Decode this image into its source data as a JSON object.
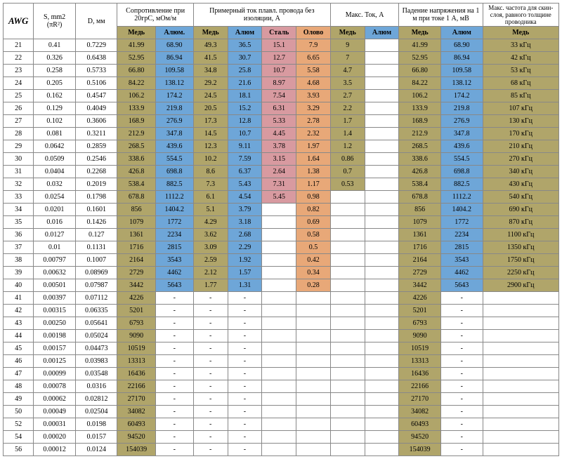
{
  "colors": {
    "copper": "#b0a56a",
    "alum": "#6ea6d8",
    "steel": "#d89aa0",
    "tin": "#e8a878"
  },
  "headers": {
    "awg": "AWG",
    "s": "S, mm2 (πR²)",
    "d": "D, мм",
    "resist": "Сопротивление при 20грC, мОм/м",
    "current": "Примерный ток плавл. провода без изоляции, А",
    "maxI": "Макс. Ток, А",
    "vdrop": "Падение напряжения на 1 м при токе 1 А, мВ",
    "freq": "Макс. частота для скин-слоя, равного толщине проводника"
  },
  "sub": {
    "cu": "Медь",
    "al": "Алюм.",
    "steel": "Сталь",
    "tin": "Олово",
    "al2": "Алюм"
  },
  "rows": [
    {
      "awg": "21",
      "s": "0.41",
      "d": "0.7229",
      "r_cu": "41.99",
      "r_al": "68.90",
      "i_cu": "49.3",
      "i_al": "36.5",
      "i_st": "15.1",
      "i_sn": "7.9",
      "m_cu": "9",
      "m_al": "",
      "v_cu": "41.99",
      "v_al": "68.90",
      "f": "33 кГц"
    },
    {
      "awg": "22",
      "s": "0.326",
      "d": "0.6438",
      "r_cu": "52.95",
      "r_al": "86.94",
      "i_cu": "41.5",
      "i_al": "30.7",
      "i_st": "12.7",
      "i_sn": "6.65",
      "m_cu": "7",
      "m_al": "",
      "v_cu": "52.95",
      "v_al": "86.94",
      "f": "42 кГц"
    },
    {
      "awg": "23",
      "s": "0.258",
      "d": "0.5733",
      "r_cu": "66.80",
      "r_al": "109.58",
      "i_cu": "34.8",
      "i_al": "25.8",
      "i_st": "10.7",
      "i_sn": "5.58",
      "m_cu": "4.7",
      "m_al": "",
      "v_cu": "66.80",
      "v_al": "109.58",
      "f": "53 кГц"
    },
    {
      "awg": "24",
      "s": "0.205",
      "d": "0.5106",
      "r_cu": "84.22",
      "r_al": "138.12",
      "i_cu": "29.2",
      "i_al": "21.6",
      "i_st": "8.97",
      "i_sn": "4.68",
      "m_cu": "3.5",
      "m_al": "",
      "v_cu": "84.22",
      "v_al": "138.12",
      "f": "68 кГц"
    },
    {
      "awg": "25",
      "s": "0.162",
      "d": "0.4547",
      "r_cu": "106.2",
      "r_al": "174.2",
      "i_cu": "24.5",
      "i_al": "18.1",
      "i_st": "7.54",
      "i_sn": "3.93",
      "m_cu": "2.7",
      "m_al": "",
      "v_cu": "106.2",
      "v_al": "174.2",
      "f": "85 кГц"
    },
    {
      "awg": "26",
      "s": "0.129",
      "d": "0.4049",
      "r_cu": "133.9",
      "r_al": "219.8",
      "i_cu": "20.5",
      "i_al": "15.2",
      "i_st": "6.31",
      "i_sn": "3.29",
      "m_cu": "2.2",
      "m_al": "",
      "v_cu": "133.9",
      "v_al": "219.8",
      "f": "107 кГц"
    },
    {
      "awg": "27",
      "s": "0.102",
      "d": "0.3606",
      "r_cu": "168.9",
      "r_al": "276.9",
      "i_cu": "17.3",
      "i_al": "12.8",
      "i_st": "5.33",
      "i_sn": "2.78",
      "m_cu": "1.7",
      "m_al": "",
      "v_cu": "168.9",
      "v_al": "276.9",
      "f": "130 кГц"
    },
    {
      "awg": "28",
      "s": "0.081",
      "d": "0.3211",
      "r_cu": "212.9",
      "r_al": "347.8",
      "i_cu": "14.5",
      "i_al": "10.7",
      "i_st": "4.45",
      "i_sn": "2.32",
      "m_cu": "1.4",
      "m_al": "",
      "v_cu": "212.9",
      "v_al": "347.8",
      "f": "170 кГц"
    },
    {
      "awg": "29",
      "s": "0.0642",
      "d": "0.2859",
      "r_cu": "268.5",
      "r_al": "439.6",
      "i_cu": "12.3",
      "i_al": "9.11",
      "i_st": "3.78",
      "i_sn": "1.97",
      "m_cu": "1.2",
      "m_al": "",
      "v_cu": "268.5",
      "v_al": "439.6",
      "f": "210 кГц"
    },
    {
      "awg": "30",
      "s": "0.0509",
      "d": "0.2546",
      "r_cu": "338.6",
      "r_al": "554.5",
      "i_cu": "10.2",
      "i_al": "7.59",
      "i_st": "3.15",
      "i_sn": "1.64",
      "m_cu": "0.86",
      "m_al": "",
      "v_cu": "338.6",
      "v_al": "554.5",
      "f": "270 кГц"
    },
    {
      "awg": "31",
      "s": "0.0404",
      "d": "0.2268",
      "r_cu": "426.8",
      "r_al": "698.8",
      "i_cu": "8.6",
      "i_al": "6.37",
      "i_st": "2.64",
      "i_sn": "1.38",
      "m_cu": "0.7",
      "m_al": "",
      "v_cu": "426.8",
      "v_al": "698.8",
      "f": "340 кГц"
    },
    {
      "awg": "32",
      "s": "0.032",
      "d": "0.2019",
      "r_cu": "538.4",
      "r_al": "882.5",
      "i_cu": "7.3",
      "i_al": "5.43",
      "i_st": "7.31",
      "i_sn": "1.17",
      "m_cu": "0.53",
      "m_al": "",
      "v_cu": "538.4",
      "v_al": "882.5",
      "f": "430 кГц"
    },
    {
      "awg": "33",
      "s": "0.0254",
      "d": "0.1798",
      "r_cu": "678.8",
      "r_al": "1112.2",
      "i_cu": "6.1",
      "i_al": "4.54",
      "i_st": "5.45",
      "i_sn": "0.98",
      "m_cu": "",
      "m_al": "",
      "v_cu": "678.8",
      "v_al": "1112.2",
      "f": "540 кГц"
    },
    {
      "awg": "34",
      "s": "0.0201",
      "d": "0.1601",
      "r_cu": "856",
      "r_al": "1404.2",
      "i_cu": "5.1",
      "i_al": "3.79",
      "i_st": "",
      "i_sn": "0.82",
      "m_cu": "",
      "m_al": "",
      "v_cu": "856",
      "v_al": "1404.2",
      "f": "690 кГц"
    },
    {
      "awg": "35",
      "s": "0.016",
      "d": "0.1426",
      "r_cu": "1079",
      "r_al": "1772",
      "i_cu": "4.29",
      "i_al": "3.18",
      "i_st": "",
      "i_sn": "0.69",
      "m_cu": "",
      "m_al": "",
      "v_cu": "1079",
      "v_al": "1772",
      "f": "870 кГц"
    },
    {
      "awg": "36",
      "s": "0.0127",
      "d": "0.127",
      "r_cu": "1361",
      "r_al": "2234",
      "i_cu": "3.62",
      "i_al": "2.68",
      "i_st": "",
      "i_sn": "0.58",
      "m_cu": "",
      "m_al": "",
      "v_cu": "1361",
      "v_al": "2234",
      "f": "1100 кГц"
    },
    {
      "awg": "37",
      "s": "0.01",
      "d": "0.1131",
      "r_cu": "1716",
      "r_al": "2815",
      "i_cu": "3.09",
      "i_al": "2.29",
      "i_st": "",
      "i_sn": "0.5",
      "m_cu": "",
      "m_al": "",
      "v_cu": "1716",
      "v_al": "2815",
      "f": "1350 кГц"
    },
    {
      "awg": "38",
      "s": "0.00797",
      "d": "0.1007",
      "r_cu": "2164",
      "r_al": "3543",
      "i_cu": "2.59",
      "i_al": "1.92",
      "i_st": "",
      "i_sn": "0.42",
      "m_cu": "",
      "m_al": "",
      "v_cu": "2164",
      "v_al": "3543",
      "f": "1750 кГц"
    },
    {
      "awg": "39",
      "s": "0.00632",
      "d": "0.08969",
      "r_cu": "2729",
      "r_al": "4462",
      "i_cu": "2.12",
      "i_al": "1.57",
      "i_st": "",
      "i_sn": "0.34",
      "m_cu": "",
      "m_al": "",
      "v_cu": "2729",
      "v_al": "4462",
      "f": "2250 кГц"
    },
    {
      "awg": "40",
      "s": "0.00501",
      "d": "0.07987",
      "r_cu": "3442",
      "r_al": "5643",
      "i_cu": "1.77",
      "i_al": "1.31",
      "i_st": "",
      "i_sn": "0.28",
      "m_cu": "",
      "m_al": "",
      "v_cu": "3442",
      "v_al": "5643",
      "f": "2900 кГц"
    },
    {
      "awg": "41",
      "s": "0.00397",
      "d": "0.07112",
      "r_cu": "4226",
      "r_al": "-",
      "i_cu": "-",
      "i_al": "-",
      "i_st": "",
      "i_sn": "",
      "m_cu": "",
      "m_al": "",
      "v_cu": "4226",
      "v_al": "-",
      "f": ""
    },
    {
      "awg": "42",
      "s": "0.00315",
      "d": "0.06335",
      "r_cu": "5201",
      "r_al": "-",
      "i_cu": "-",
      "i_al": "-",
      "i_st": "",
      "i_sn": "",
      "m_cu": "",
      "m_al": "",
      "v_cu": "5201",
      "v_al": "-",
      "f": ""
    },
    {
      "awg": "43",
      "s": "0.00250",
      "d": "0.05641",
      "r_cu": "6793",
      "r_al": "-",
      "i_cu": "-",
      "i_al": "-",
      "i_st": "",
      "i_sn": "",
      "m_cu": "",
      "m_al": "",
      "v_cu": "6793",
      "v_al": "-",
      "f": ""
    },
    {
      "awg": "44",
      "s": "0.00198",
      "d": "0.05024",
      "r_cu": "9090",
      "r_al": "-",
      "i_cu": "-",
      "i_al": "-",
      "i_st": "",
      "i_sn": "",
      "m_cu": "",
      "m_al": "",
      "v_cu": "9090",
      "v_al": "-",
      "f": ""
    },
    {
      "awg": "45",
      "s": "0.00157",
      "d": "0.04473",
      "r_cu": "10519",
      "r_al": "-",
      "i_cu": "-",
      "i_al": "-",
      "i_st": "",
      "i_sn": "",
      "m_cu": "",
      "m_al": "",
      "v_cu": "10519",
      "v_al": "-",
      "f": ""
    },
    {
      "awg": "46",
      "s": "0.00125",
      "d": "0.03983",
      "r_cu": "13313",
      "r_al": "-",
      "i_cu": "-",
      "i_al": "-",
      "i_st": "",
      "i_sn": "",
      "m_cu": "",
      "m_al": "",
      "v_cu": "13313",
      "v_al": "-",
      "f": ""
    },
    {
      "awg": "47",
      "s": "0.00099",
      "d": "0.03548",
      "r_cu": "16436",
      "r_al": "-",
      "i_cu": "-",
      "i_al": "-",
      "i_st": "",
      "i_sn": "",
      "m_cu": "",
      "m_al": "",
      "v_cu": "16436",
      "v_al": "-",
      "f": ""
    },
    {
      "awg": "48",
      "s": "0.00078",
      "d": "0.0316",
      "r_cu": "22166",
      "r_al": "-",
      "i_cu": "-",
      "i_al": "-",
      "i_st": "",
      "i_sn": "",
      "m_cu": "",
      "m_al": "",
      "v_cu": "22166",
      "v_al": "-",
      "f": ""
    },
    {
      "awg": "49",
      "s": "0.00062",
      "d": "0.02812",
      "r_cu": "27170",
      "r_al": "-",
      "i_cu": "-",
      "i_al": "-",
      "i_st": "",
      "i_sn": "",
      "m_cu": "",
      "m_al": "",
      "v_cu": "27170",
      "v_al": "-",
      "f": ""
    },
    {
      "awg": "50",
      "s": "0.00049",
      "d": "0.02504",
      "r_cu": "34082",
      "r_al": "-",
      "i_cu": "-",
      "i_al": "-",
      "i_st": "",
      "i_sn": "",
      "m_cu": "",
      "m_al": "",
      "v_cu": "34082",
      "v_al": "-",
      "f": ""
    },
    {
      "awg": "52",
      "s": "0.00031",
      "d": "0.0198",
      "r_cu": "60493",
      "r_al": "-",
      "i_cu": "-",
      "i_al": "-",
      "i_st": "",
      "i_sn": "",
      "m_cu": "",
      "m_al": "",
      "v_cu": "60493",
      "v_al": "-",
      "f": ""
    },
    {
      "awg": "54",
      "s": "0.00020",
      "d": "0.0157",
      "r_cu": "94520",
      "r_al": "-",
      "i_cu": "-",
      "i_al": "-",
      "i_st": "",
      "i_sn": "",
      "m_cu": "",
      "m_al": "",
      "v_cu": "94520",
      "v_al": "-",
      "f": ""
    },
    {
      "awg": "56",
      "s": "0.00012",
      "d": "0.0124",
      "r_cu": "154039",
      "r_al": "-",
      "i_cu": "-",
      "i_al": "-",
      "i_st": "",
      "i_sn": "",
      "m_cu": "",
      "m_al": "",
      "v_cu": "154039",
      "v_al": "-",
      "f": ""
    }
  ]
}
